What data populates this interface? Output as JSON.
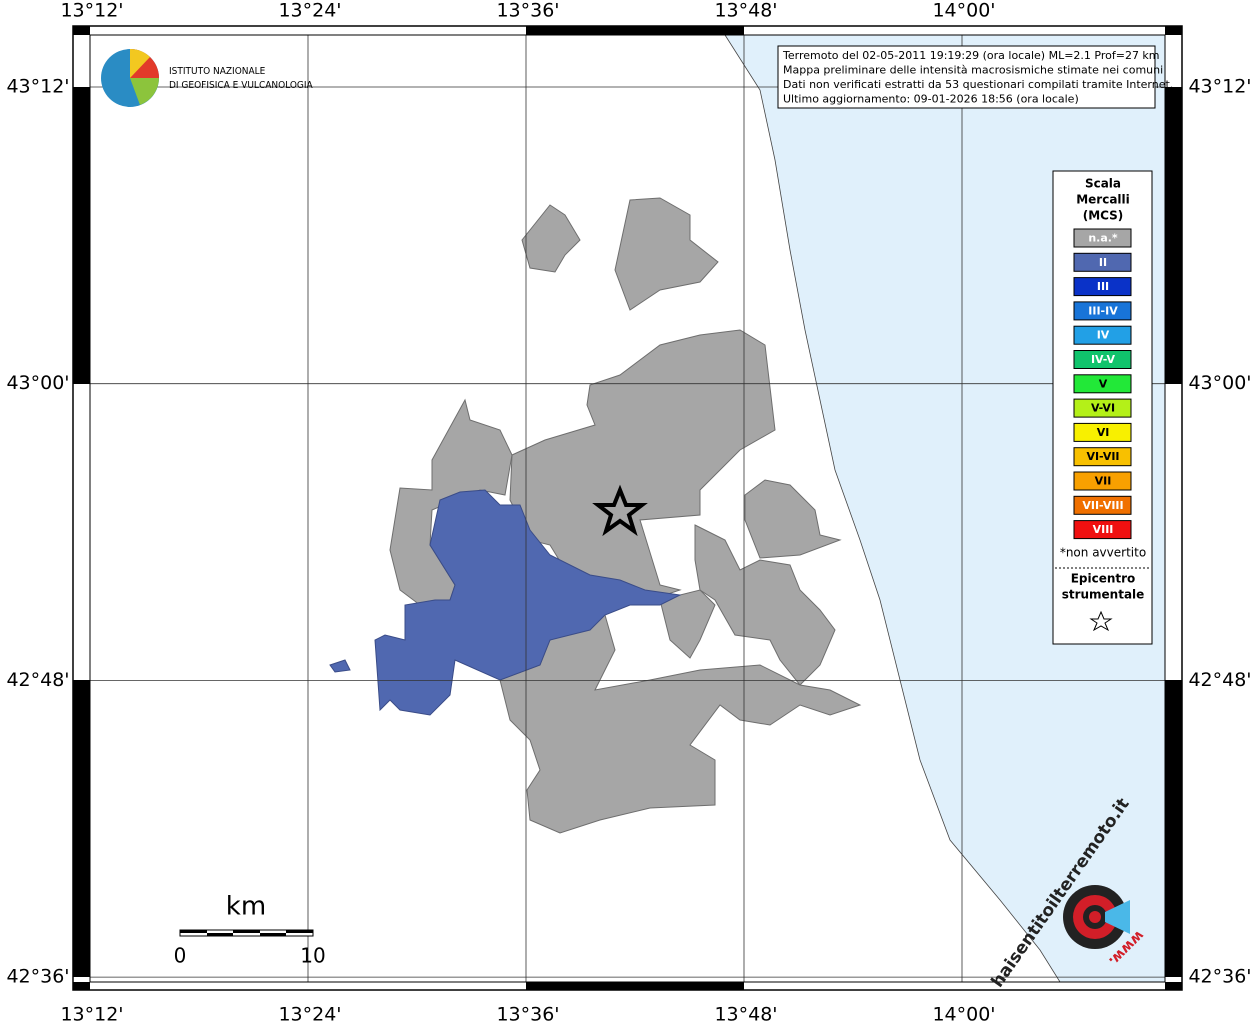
{
  "map": {
    "lon_labels": [
      "13°12'",
      "13°24'",
      "13°36'",
      "13°48'",
      "14°00'"
    ],
    "lat_labels": [
      "43°12'",
      "43°00'",
      "42°48'",
      "42°36'"
    ],
    "info_box": [
      "Terremoto del 02-05-2011 19:19:29 (ora locale) ML=2.1 Prof=27 km",
      "Mappa preliminare delle intensità macrosismiche stimate nei comuni",
      "Dati non verificati estratti da 53 questionari compilati tramite Internet.",
      "Ultimo aggiornamento: 09-01-2026 18:56 (ora locale)"
    ],
    "logo": [
      "ISTITUTO NAZIONALE",
      "DI GEOFISICA E VULCANOLOGIA"
    ],
    "legend": {
      "title": [
        "Scala",
        "Mercalli",
        "(MCS)"
      ],
      "items": [
        {
          "label": "n.a.*",
          "color": "#a6a6a6"
        },
        {
          "label": "II",
          "color": "#5068b0"
        },
        {
          "label": "III",
          "color": "#0a32c8"
        },
        {
          "label": "III-IV",
          "color": "#1874d8"
        },
        {
          "label": "IV",
          "color": "#22a0e6"
        },
        {
          "label": "IV-V",
          "color": "#10c46c"
        },
        {
          "label": "V",
          "color": "#22e838"
        },
        {
          "label": "V-VI",
          "color": "#b4f018"
        },
        {
          "label": "VI",
          "color": "#f8f000"
        },
        {
          "label": "VI-VII",
          "color": "#f8c000"
        },
        {
          "label": "VII",
          "color": "#f8a000"
        },
        {
          "label": "VII-VIII",
          "color": "#f07000"
        },
        {
          "label": "VIII",
          "color": "#f01010"
        }
      ],
      "note": "*non avvertito",
      "epicenter": [
        "Epicentro",
        "strumentale"
      ]
    },
    "scale_bar": {
      "unit": "km",
      "labels": [
        "0",
        "10"
      ]
    },
    "brand": [
      "haisentitoilterremoto.it",
      "www."
    ]
  }
}
